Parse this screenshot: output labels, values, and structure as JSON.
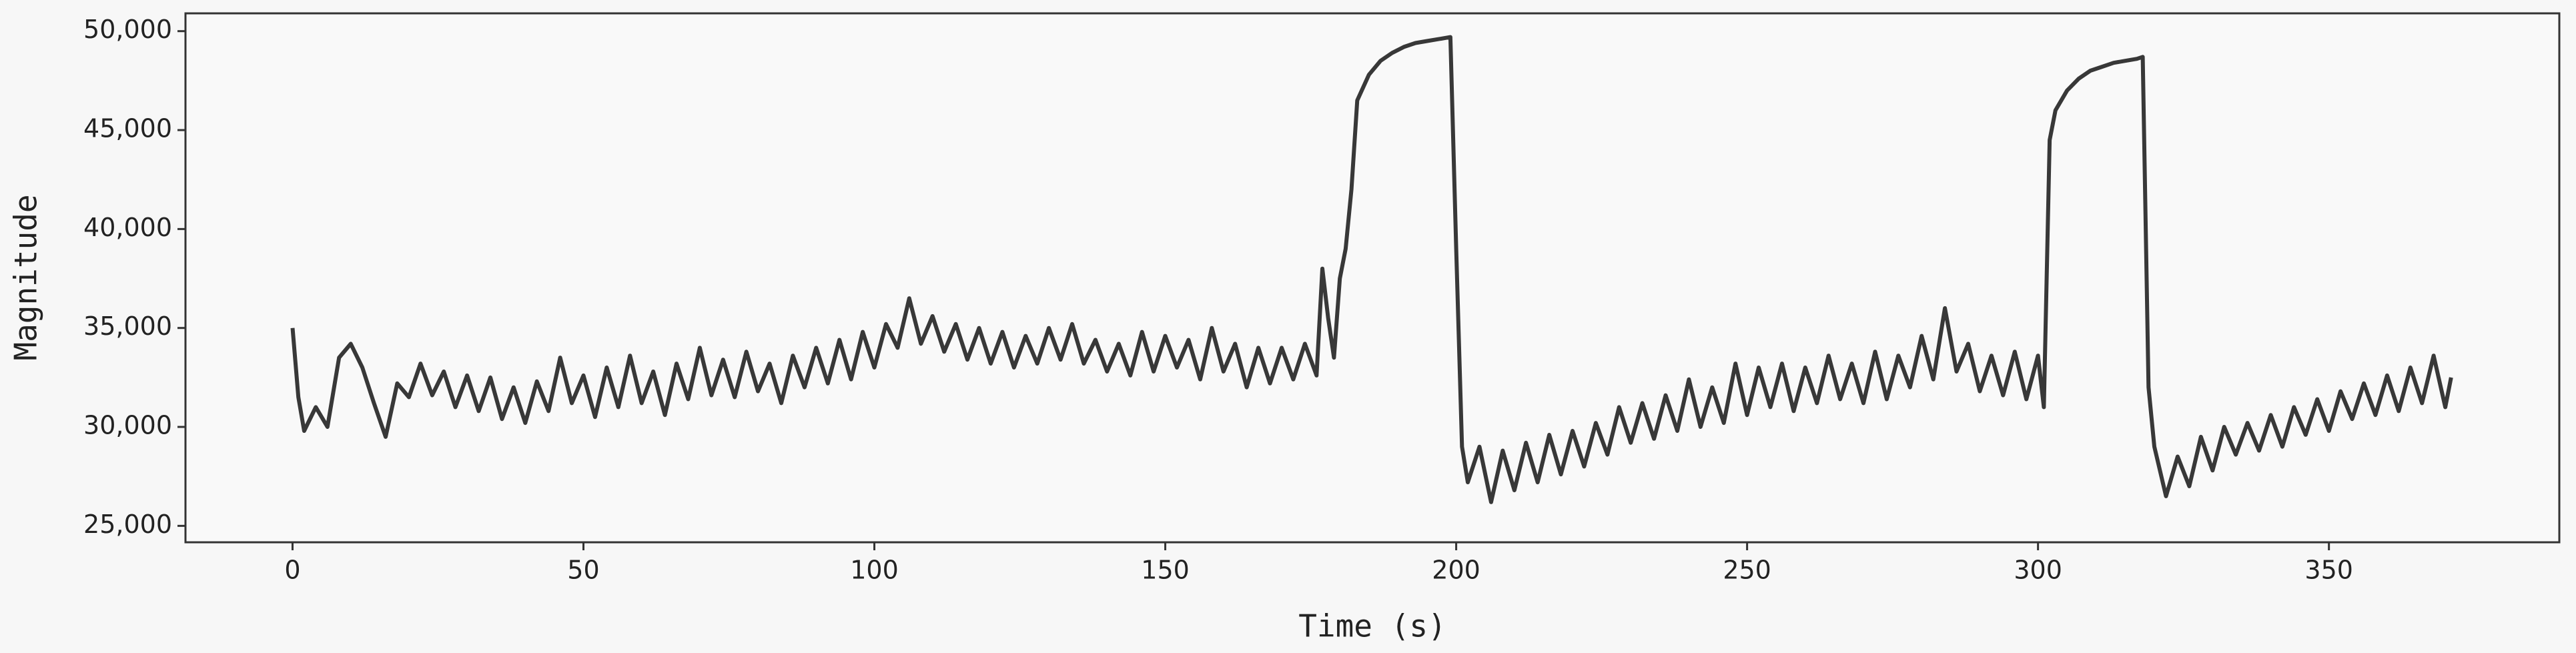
{
  "chart_data": {
    "type": "line",
    "xlabel": "Time (s)",
    "ylabel": "Magnitude",
    "color": "#383838",
    "x": [
      0,
      1,
      2,
      4,
      6,
      8,
      10,
      12,
      14,
      16,
      18,
      20,
      22,
      24,
      26,
      28,
      30,
      32,
      34,
      36,
      38,
      40,
      42,
      44,
      46,
      48,
      50,
      52,
      54,
      56,
      58,
      60,
      62,
      64,
      66,
      68,
      70,
      72,
      74,
      76,
      78,
      80,
      82,
      84,
      86,
      88,
      90,
      92,
      94,
      96,
      98,
      100,
      102,
      104,
      106,
      108,
      110,
      112,
      114,
      116,
      118,
      120,
      122,
      124,
      126,
      128,
      130,
      132,
      134,
      136,
      138,
      140,
      142,
      144,
      146,
      148,
      150,
      152,
      154,
      156,
      158,
      160,
      162,
      164,
      166,
      168,
      170,
      172,
      174,
      176,
      177,
      178,
      179,
      180,
      181,
      182,
      183,
      185,
      187,
      189,
      191,
      193,
      195,
      197,
      199,
      200,
      201,
      202,
      204,
      206,
      208,
      210,
      212,
      214,
      216,
      218,
      220,
      222,
      224,
      226,
      228,
      230,
      232,
      234,
      236,
      238,
      240,
      242,
      244,
      246,
      248,
      250,
      252,
      254,
      256,
      258,
      260,
      262,
      264,
      266,
      268,
      270,
      272,
      274,
      276,
      278,
      280,
      282,
      284,
      286,
      288,
      290,
      292,
      294,
      296,
      298,
      300,
      301,
      302,
      303,
      305,
      307,
      309,
      311,
      313,
      315,
      317,
      318,
      319,
      320,
      322,
      324,
      326,
      328,
      330,
      332,
      334,
      336,
      338,
      340,
      342,
      344,
      346,
      348,
      350,
      352,
      354,
      356,
      358,
      360,
      362,
      364,
      366,
      368,
      370,
      371
    ],
    "values": [
      35000,
      31500,
      29800,
      31000,
      30000,
      33500,
      34200,
      33000,
      31200,
      29500,
      32200,
      31500,
      33200,
      31600,
      32800,
      31000,
      32600,
      30800,
      32500,
      30400,
      32000,
      30200,
      32300,
      30800,
      33500,
      31200,
      32600,
      30500,
      33000,
      31000,
      33600,
      31200,
      32800,
      30600,
      33200,
      31400,
      34000,
      31600,
      33400,
      31500,
      33800,
      31800,
      33200,
      31200,
      33600,
      32000,
      34000,
      32200,
      34400,
      32400,
      34800,
      33000,
      35200,
      34000,
      36500,
      34200,
      35600,
      33800,
      35200,
      33400,
      35000,
      33200,
      34800,
      33000,
      34600,
      33200,
      35000,
      33400,
      35200,
      33200,
      34400,
      32800,
      34200,
      32600,
      34800,
      32800,
      34600,
      33000,
      34400,
      32400,
      35000,
      32800,
      34200,
      32000,
      34000,
      32200,
      34000,
      32400,
      34200,
      32600,
      38000,
      35500,
      33500,
      37500,
      39000,
      42000,
      46500,
      47800,
      48500,
      48900,
      49200,
      49400,
      49500,
      49600,
      49700,
      39000,
      29000,
      27200,
      29000,
      26200,
      28800,
      26800,
      29200,
      27200,
      29600,
      27600,
      29800,
      28000,
      30200,
      28600,
      31000,
      29200,
      31200,
      29400,
      31600,
      29800,
      32400,
      30000,
      32000,
      30200,
      33200,
      30600,
      33000,
      31000,
      33200,
      30800,
      33000,
      31200,
      33600,
      31400,
      33200,
      31200,
      33800,
      31400,
      33600,
      32000,
      34600,
      32400,
      36000,
      32800,
      34200,
      31800,
      33600,
      31600,
      33800,
      31400,
      33600,
      31000,
      44500,
      46000,
      47000,
      47600,
      48000,
      48200,
      48400,
      48500,
      48600,
      48700,
      32000,
      29000,
      26500,
      28500,
      27000,
      29500,
      27800,
      30000,
      28600,
      30200,
      28800,
      30600,
      29000,
      31000,
      29600,
      31400,
      29800,
      31800,
      30400,
      32200,
      30600,
      32600,
      30800,
      33000,
      31200,
      33600,
      31000,
      32500
    ],
    "xlim": [
      -18.4,
      389.6
    ],
    "ylim": [
      24170,
      50900
    ],
    "xticks": [
      0,
      50,
      100,
      150,
      200,
      250,
      300,
      350
    ],
    "yticks": [
      {
        "value": 25000,
        "label": "25,000"
      },
      {
        "value": 30000,
        "label": "30,000"
      },
      {
        "value": 35000,
        "label": "35,000"
      },
      {
        "value": 40000,
        "label": "40,000"
      },
      {
        "value": 45000,
        "label": "45,000"
      },
      {
        "value": 50000,
        "label": "50,000"
      }
    ],
    "grid": false
  }
}
